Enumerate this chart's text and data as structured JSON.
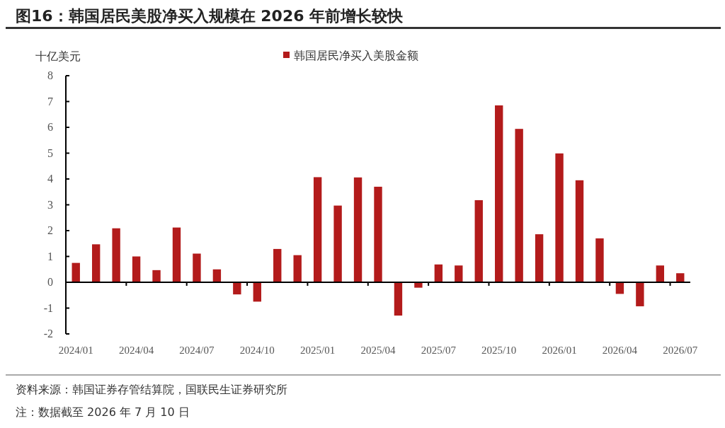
{
  "chart_data": {
    "type": "bar",
    "title": "图16：韩国居民美股净买入规模在 2026 年前增长较快",
    "ylabel": "十亿美元",
    "annotations": [
      "资料来源：韩国证券存管结算院，国联民生证券研究所",
      "注：数据截至 2026 年 7 月 10 日"
    ],
    "categories": [
      "2024/01",
      null,
      null,
      "2024/04",
      null,
      null,
      "2024/07",
      null,
      null,
      "2024/10",
      null,
      null,
      "2025/01",
      null,
      null,
      "2025/04",
      null,
      null,
      "2025/07",
      null,
      null,
      "2025/10",
      null,
      null,
      "2026/01",
      null,
      null,
      "2026/04",
      null,
      null,
      "2026/07"
    ],
    "series": [
      {
        "name": "韩国居民净买入美股金额",
        "color": "#b31b1b",
        "values": [
          0.75,
          1.47,
          2.09,
          1.0,
          0.47,
          2.12,
          1.11,
          0.5,
          -0.47,
          -0.75,
          1.29,
          1.05,
          4.07,
          2.97,
          4.06,
          3.7,
          -1.29,
          -0.21,
          0.69,
          0.65,
          3.18,
          6.85,
          5.94,
          1.86,
          4.99,
          3.95,
          1.7,
          -0.45,
          -0.93,
          0.65,
          0.35
        ]
      }
    ],
    "ylim": [
      -2,
      8
    ],
    "yticks": [
      -2,
      -1,
      0,
      1,
      2,
      3,
      4,
      5,
      6,
      7,
      8
    ],
    "legend": "top"
  }
}
